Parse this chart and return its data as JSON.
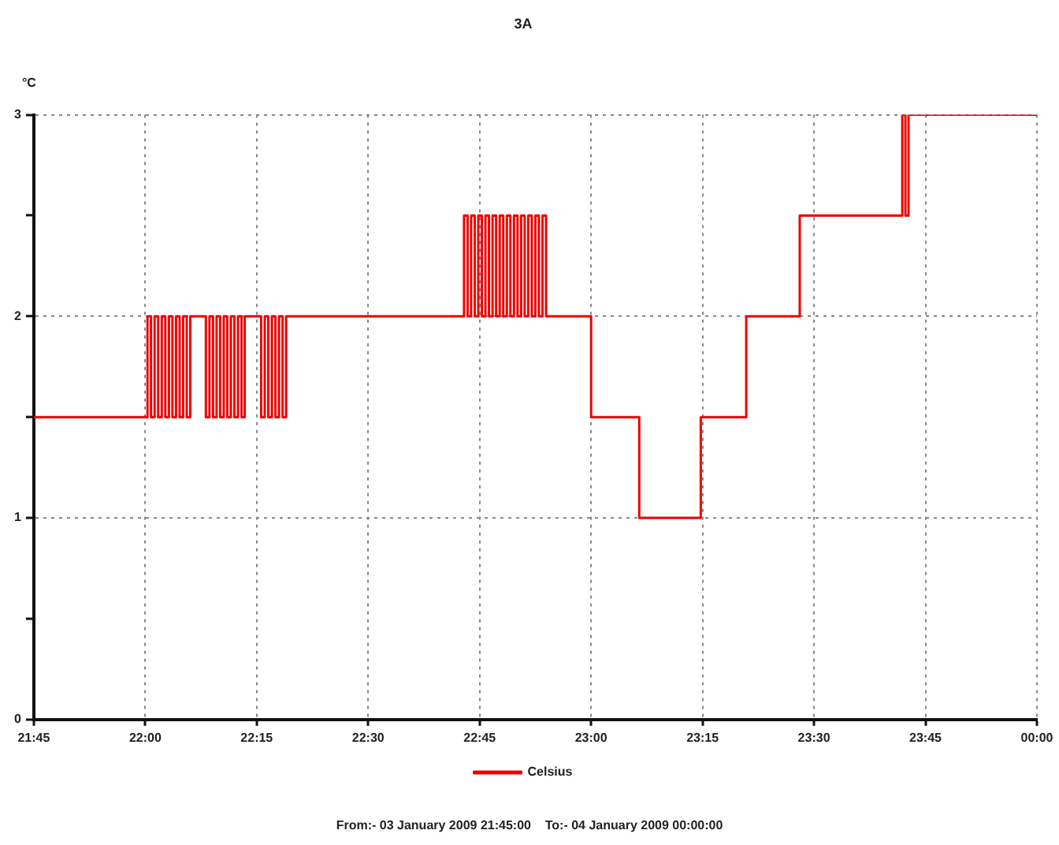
{
  "chart_data": {
    "type": "step",
    "title": "3A",
    "ylabel": "°C",
    "x": [
      21.75,
      22.005,
      22.013,
      22.021,
      22.029,
      22.037,
      22.045,
      22.053,
      22.061,
      22.069,
      22.077,
      22.085,
      22.093,
      22.101,
      22.136,
      22.144,
      22.152,
      22.16,
      22.168,
      22.176,
      22.184,
      22.192,
      22.2,
      22.208,
      22.216,
      22.223,
      22.26,
      22.268,
      22.276,
      22.284,
      22.292,
      22.3,
      22.308,
      22.316,
      22.715,
      22.723,
      22.731,
      22.739,
      22.747,
      22.755,
      22.763,
      22.771,
      22.779,
      22.787,
      22.795,
      22.803,
      22.811,
      22.819,
      22.827,
      22.835,
      22.843,
      22.851,
      22.859,
      22.867,
      22.875,
      22.883,
      22.891,
      22.899,
      23.0,
      23.108,
      23.246,
      23.348,
      23.468,
      23.698,
      23.705,
      23.712,
      24
    ],
    "series": [
      {
        "name": "Celsius",
        "color": "#ee0000",
        "values": [
          1.5,
          2,
          1.5,
          2,
          1.5,
          2,
          1.5,
          2,
          1.5,
          2,
          1.5,
          2,
          1.5,
          2,
          1.5,
          2,
          1.5,
          2,
          1.5,
          2,
          1.5,
          2,
          1.5,
          2,
          1.5,
          2,
          1.5,
          2,
          1.5,
          2,
          1.5,
          2,
          1.5,
          2,
          2.5,
          2,
          2.5,
          2,
          2.5,
          2,
          2.5,
          2,
          2.5,
          2,
          2.5,
          2,
          2.5,
          2,
          2.5,
          2,
          2.5,
          2,
          2.5,
          2,
          2.5,
          2,
          2.5,
          2,
          1.5,
          1,
          1.5,
          2,
          2.5,
          3,
          2.5,
          3,
          3
        ]
      }
    ],
    "xlim": [
      21.75,
      24
    ],
    "xticks": [
      {
        "value": 21.75,
        "label": "21:45"
      },
      {
        "value": 22,
        "label": "22:00"
      },
      {
        "value": 22.25,
        "label": "22:15"
      },
      {
        "value": 22.5,
        "label": "22:30"
      },
      {
        "value": 22.75,
        "label": "22:45"
      },
      {
        "value": 23,
        "label": "23:00"
      },
      {
        "value": 23.25,
        "label": "23:15"
      },
      {
        "value": 23.5,
        "label": "23:30"
      },
      {
        "value": 23.75,
        "label": "23:45"
      },
      {
        "value": 24,
        "label": "00:00"
      }
    ],
    "ylim": [
      0,
      3
    ],
    "yticks": [
      0,
      {
        "value": 0.5,
        "label": null
      },
      1,
      {
        "value": 1.5,
        "label": null
      },
      2,
      {
        "value": 2.5,
        "label": null
      },
      3
    ],
    "grid": true,
    "legend": "bottom",
    "line_style": "solid",
    "annotations": [
      "From:- 03 January 2009 21:45:00    To:- 04 January 2009 00:00:00"
    ]
  }
}
